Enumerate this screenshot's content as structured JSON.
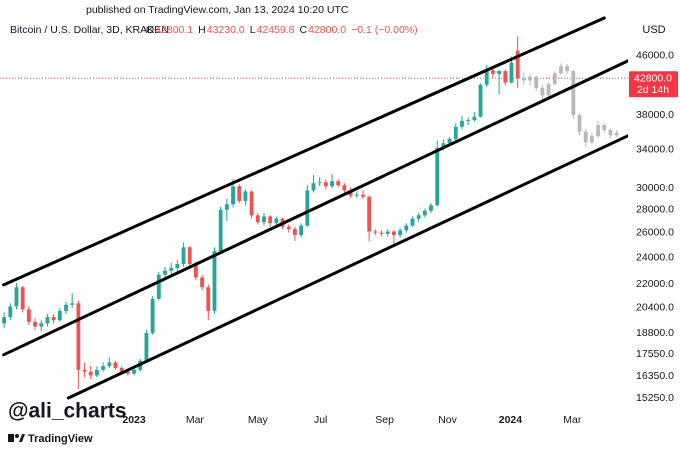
{
  "page": {
    "published": "published on TradingView.com, Jan 13, 2024 10:20 UTC",
    "watermark": "@ali_charts",
    "brand": "TradingView"
  },
  "chart_data": {
    "type": "candlestick",
    "symbol": "Bitcoin / U.S. Dollar, 3D, KRAKEN",
    "ohlc_legend": [
      {
        "label": "O",
        "value": "42800.1"
      },
      {
        "label": "H",
        "value": "43230.0"
      },
      {
        "label": "L",
        "value": "42459.8"
      },
      {
        "label": "C",
        "value": "42800.0"
      }
    ],
    "change": "−0.1 (−0.00%)",
    "currency": "USD",
    "log_scale": true,
    "up_color": "#26a69a",
    "down_color": "#ef5350",
    "projection_color": "#b8b8b8",
    "xlim": [
      -130,
      479
    ],
    "xticks": [
      {
        "value": 0,
        "label": "2023"
      },
      {
        "value": 59,
        "label": "Mar"
      },
      {
        "value": 120,
        "label": "May"
      },
      {
        "value": 181,
        "label": "Jul"
      },
      {
        "value": 243,
        "label": "Sep"
      },
      {
        "value": 304,
        "label": "Nov"
      },
      {
        "value": 365,
        "label": "2024"
      },
      {
        "value": 425,
        "label": "Mar"
      }
    ],
    "ylim": [
      14670,
      53000
    ],
    "yticks": [
      {
        "value": 46000,
        "label": "46000.0"
      },
      {
        "value": 38000,
        "label": "38000.0"
      },
      {
        "value": 34000,
        "label": "34000.0"
      },
      {
        "value": 30000,
        "label": "30000.0"
      },
      {
        "value": 28000,
        "label": "28000.0"
      },
      {
        "value": 26000,
        "label": "26000.0"
      },
      {
        "value": 24000,
        "label": "24000.0"
      },
      {
        "value": 22000,
        "label": "22000.0"
      },
      {
        "value": 20400,
        "label": "20400.0"
      },
      {
        "value": 18800,
        "label": "18800.0"
      },
      {
        "value": 17550,
        "label": "17550.0"
      },
      {
        "value": 16350,
        "label": "16350.0"
      },
      {
        "value": 15250,
        "label": "15250.0"
      }
    ],
    "last_price": {
      "value": 42800,
      "label": "42800.0",
      "countdown": "2d 14h"
    },
    "candles": [
      [
        -126,
        19400,
        20100,
        19100,
        19800
      ],
      [
        -120,
        19800,
        20700,
        19600,
        20500
      ],
      [
        -114,
        20500,
        22100,
        20300,
        21800
      ],
      [
        -108,
        21800,
        21900,
        20100,
        20300
      ],
      [
        -102,
        20300,
        20500,
        19300,
        19500
      ],
      [
        -96,
        19500,
        19700,
        19000,
        19200
      ],
      [
        -90,
        19200,
        19600,
        18900,
        19400
      ],
      [
        -84,
        19400,
        20000,
        19200,
        19800
      ],
      [
        -78,
        19800,
        20000,
        19400,
        19600
      ],
      [
        -72,
        19600,
        20400,
        19500,
        20200
      ],
      [
        -66,
        20200,
        20800,
        20000,
        20600
      ],
      [
        -60,
        20600,
        21400,
        20400,
        20700
      ],
      [
        -54,
        20700,
        20900,
        15700,
        16700
      ],
      [
        -48,
        16700,
        17100,
        16300,
        16600
      ],
      [
        -42,
        16600,
        16900,
        16200,
        16400
      ],
      [
        -36,
        16400,
        16900,
        16300,
        16700
      ],
      [
        -30,
        16700,
        17100,
        16600,
        16900
      ],
      [
        -24,
        16900,
        17400,
        16800,
        17100
      ],
      [
        -18,
        17100,
        17200,
        16700,
        16800
      ],
      [
        -12,
        16800,
        16900,
        16500,
        16600
      ],
      [
        -6,
        16600,
        16700,
        16400,
        16500
      ],
      [
        0,
        16500,
        16800,
        16400,
        16700
      ],
      [
        6,
        16700,
        17300,
        16600,
        17200
      ],
      [
        12,
        17200,
        19000,
        17100,
        18800
      ],
      [
        18,
        18800,
        21200,
        18700,
        21000
      ],
      [
        24,
        21000,
        22900,
        20900,
        22700
      ],
      [
        30,
        22700,
        23300,
        22400,
        23000
      ],
      [
        36,
        23000,
        23600,
        22700,
        23200
      ],
      [
        42,
        23200,
        23800,
        22900,
        23500
      ],
      [
        48,
        23500,
        25200,
        23300,
        24800
      ],
      [
        54,
        24800,
        24900,
        23300,
        23500
      ],
      [
        60,
        23500,
        23700,
        22300,
        22500
      ],
      [
        66,
        22500,
        22700,
        21600,
        21800
      ],
      [
        72,
        21800,
        22000,
        19600,
        20200
      ],
      [
        78,
        20200,
        24800,
        20000,
        24500
      ],
      [
        84,
        24500,
        28300,
        24300,
        28000
      ],
      [
        90,
        28000,
        29000,
        27000,
        28500
      ],
      [
        96,
        28500,
        30900,
        28200,
        30200
      ],
      [
        102,
        30200,
        30400,
        28600,
        28800
      ],
      [
        108,
        28800,
        29900,
        28400,
        29700
      ],
      [
        114,
        29700,
        29800,
        27200,
        27500
      ],
      [
        120,
        27500,
        27700,
        26700,
        26900
      ],
      [
        126,
        26900,
        27700,
        26600,
        27400
      ],
      [
        132,
        27400,
        27500,
        26500,
        26800
      ],
      [
        138,
        26800,
        27400,
        26500,
        27200
      ],
      [
        144,
        27200,
        27300,
        26300,
        26500
      ],
      [
        150,
        26500,
        26700,
        26000,
        26300
      ],
      [
        156,
        26300,
        26500,
        25300,
        25800
      ],
      [
        162,
        25800,
        26800,
        25600,
        26600
      ],
      [
        168,
        26600,
        30300,
        26500,
        29800
      ],
      [
        174,
        29800,
        31300,
        29600,
        30500
      ],
      [
        180,
        30500,
        31100,
        30200,
        30600
      ],
      [
        186,
        30600,
        30900,
        29900,
        30200
      ],
      [
        192,
        30200,
        31400,
        30000,
        30700
      ],
      [
        198,
        30700,
        30900,
        30100,
        30300
      ],
      [
        204,
        30300,
        30500,
        29600,
        29800
      ],
      [
        210,
        29800,
        30100,
        29100,
        29300
      ],
      [
        216,
        29300,
        29700,
        29100,
        29400
      ],
      [
        222,
        29400,
        29800,
        29000,
        29200
      ],
      [
        228,
        29200,
        29300,
        25300,
        26100
      ],
      [
        234,
        26100,
        26300,
        25800,
        26000
      ],
      [
        240,
        26000,
        26200,
        25700,
        25900
      ],
      [
        246,
        25900,
        26300,
        25700,
        26100
      ],
      [
        252,
        26100,
        26200,
        25100,
        25800
      ],
      [
        258,
        25800,
        26400,
        25600,
        26200
      ],
      [
        264,
        26200,
        26800,
        26000,
        26600
      ],
      [
        270,
        26600,
        27400,
        26500,
        27200
      ],
      [
        276,
        27200,
        27700,
        26900,
        27500
      ],
      [
        282,
        27500,
        28100,
        27300,
        27900
      ],
      [
        288,
        27900,
        28600,
        27700,
        28400
      ],
      [
        294,
        28400,
        35000,
        28300,
        34200
      ],
      [
        300,
        34200,
        35100,
        33900,
        34700
      ],
      [
        306,
        34700,
        35400,
        34400,
        35200
      ],
      [
        312,
        35200,
        37000,
        35000,
        36600
      ],
      [
        318,
        36600,
        37900,
        36300,
        37300
      ],
      [
        324,
        37300,
        37700,
        36800,
        37400
      ],
      [
        330,
        37400,
        38400,
        37200,
        37800
      ],
      [
        336,
        37800,
        42100,
        37700,
        41900
      ],
      [
        342,
        41900,
        44700,
        41600,
        43900
      ],
      [
        348,
        43900,
        44200,
        42800,
        43400
      ],
      [
        354,
        43400,
        44000,
        40600,
        43800
      ],
      [
        360,
        43800,
        44000,
        41800,
        42200
      ],
      [
        366,
        42200,
        45900,
        42100,
        45000
      ],
      [
        372,
        46800,
        49000,
        41500,
        42800
      ]
    ],
    "projection": [
      [
        378,
        42800,
        43600,
        41900,
        42500
      ],
      [
        384,
        42500,
        43400,
        41800,
        43000
      ],
      [
        390,
        43000,
        43200,
        41100,
        41500
      ],
      [
        396,
        41500,
        41900,
        39800,
        40500
      ],
      [
        402,
        40500,
        42300,
        40300,
        42000
      ],
      [
        408,
        42000,
        43800,
        41800,
        43500
      ],
      [
        414,
        43500,
        44900,
        43200,
        44500
      ],
      [
        420,
        44500,
        44800,
        43400,
        43800
      ],
      [
        426,
        43800,
        44000,
        37500,
        38000
      ],
      [
        432,
        38000,
        38200,
        35600,
        36000
      ],
      [
        438,
        36000,
        36300,
        34300,
        34800
      ],
      [
        444,
        34800,
        35900,
        34600,
        35500
      ],
      [
        450,
        35500,
        37300,
        35300,
        36800
      ],
      [
        456,
        36800,
        37000,
        35900,
        36200
      ],
      [
        462,
        36200,
        36400,
        35300,
        35600
      ],
      [
        468,
        35600,
        36200,
        35400,
        35900
      ]
    ],
    "trendlines": [
      {
        "points": [
          [
            -126.5,
            21970
          ],
          [
            456,
            51990
          ]
        ]
      },
      {
        "points": [
          [
            -126.5,
            17530
          ],
          [
            485,
            45700
          ]
        ]
      },
      {
        "points": [
          [
            -63.7,
            15250
          ],
          [
            485,
            35880
          ]
        ]
      }
    ]
  }
}
